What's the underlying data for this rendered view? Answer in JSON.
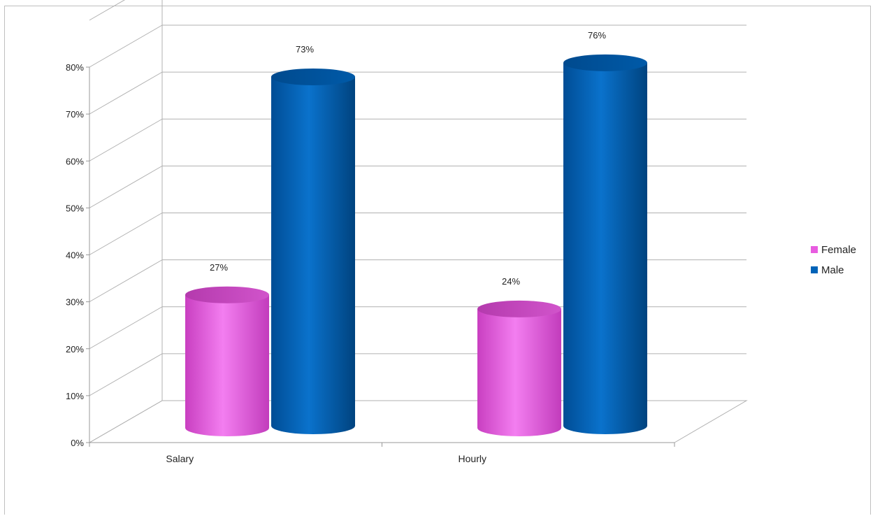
{
  "chart_data": {
    "type": "bar",
    "style": "3d-cylinder",
    "categories": [
      "Salary",
      "Hourly"
    ],
    "series": [
      {
        "name": "Female",
        "color": "#e85ce0",
        "values": [
          27,
          24
        ],
        "labels": [
          "27%",
          "24%"
        ]
      },
      {
        "name": "Male",
        "color": "#0063b8",
        "values": [
          73,
          76
        ],
        "labels": [
          "73%",
          "76%"
        ]
      }
    ],
    "ylim": [
      0,
      80
    ],
    "yticks": [
      0,
      10,
      20,
      30,
      40,
      50,
      60,
      70,
      80
    ],
    "ytick_labels": [
      "0%",
      "10%",
      "20%",
      "30%",
      "40%",
      "50%",
      "60%",
      "70%",
      "80%"
    ],
    "grid": true,
    "legend_position": "right"
  }
}
